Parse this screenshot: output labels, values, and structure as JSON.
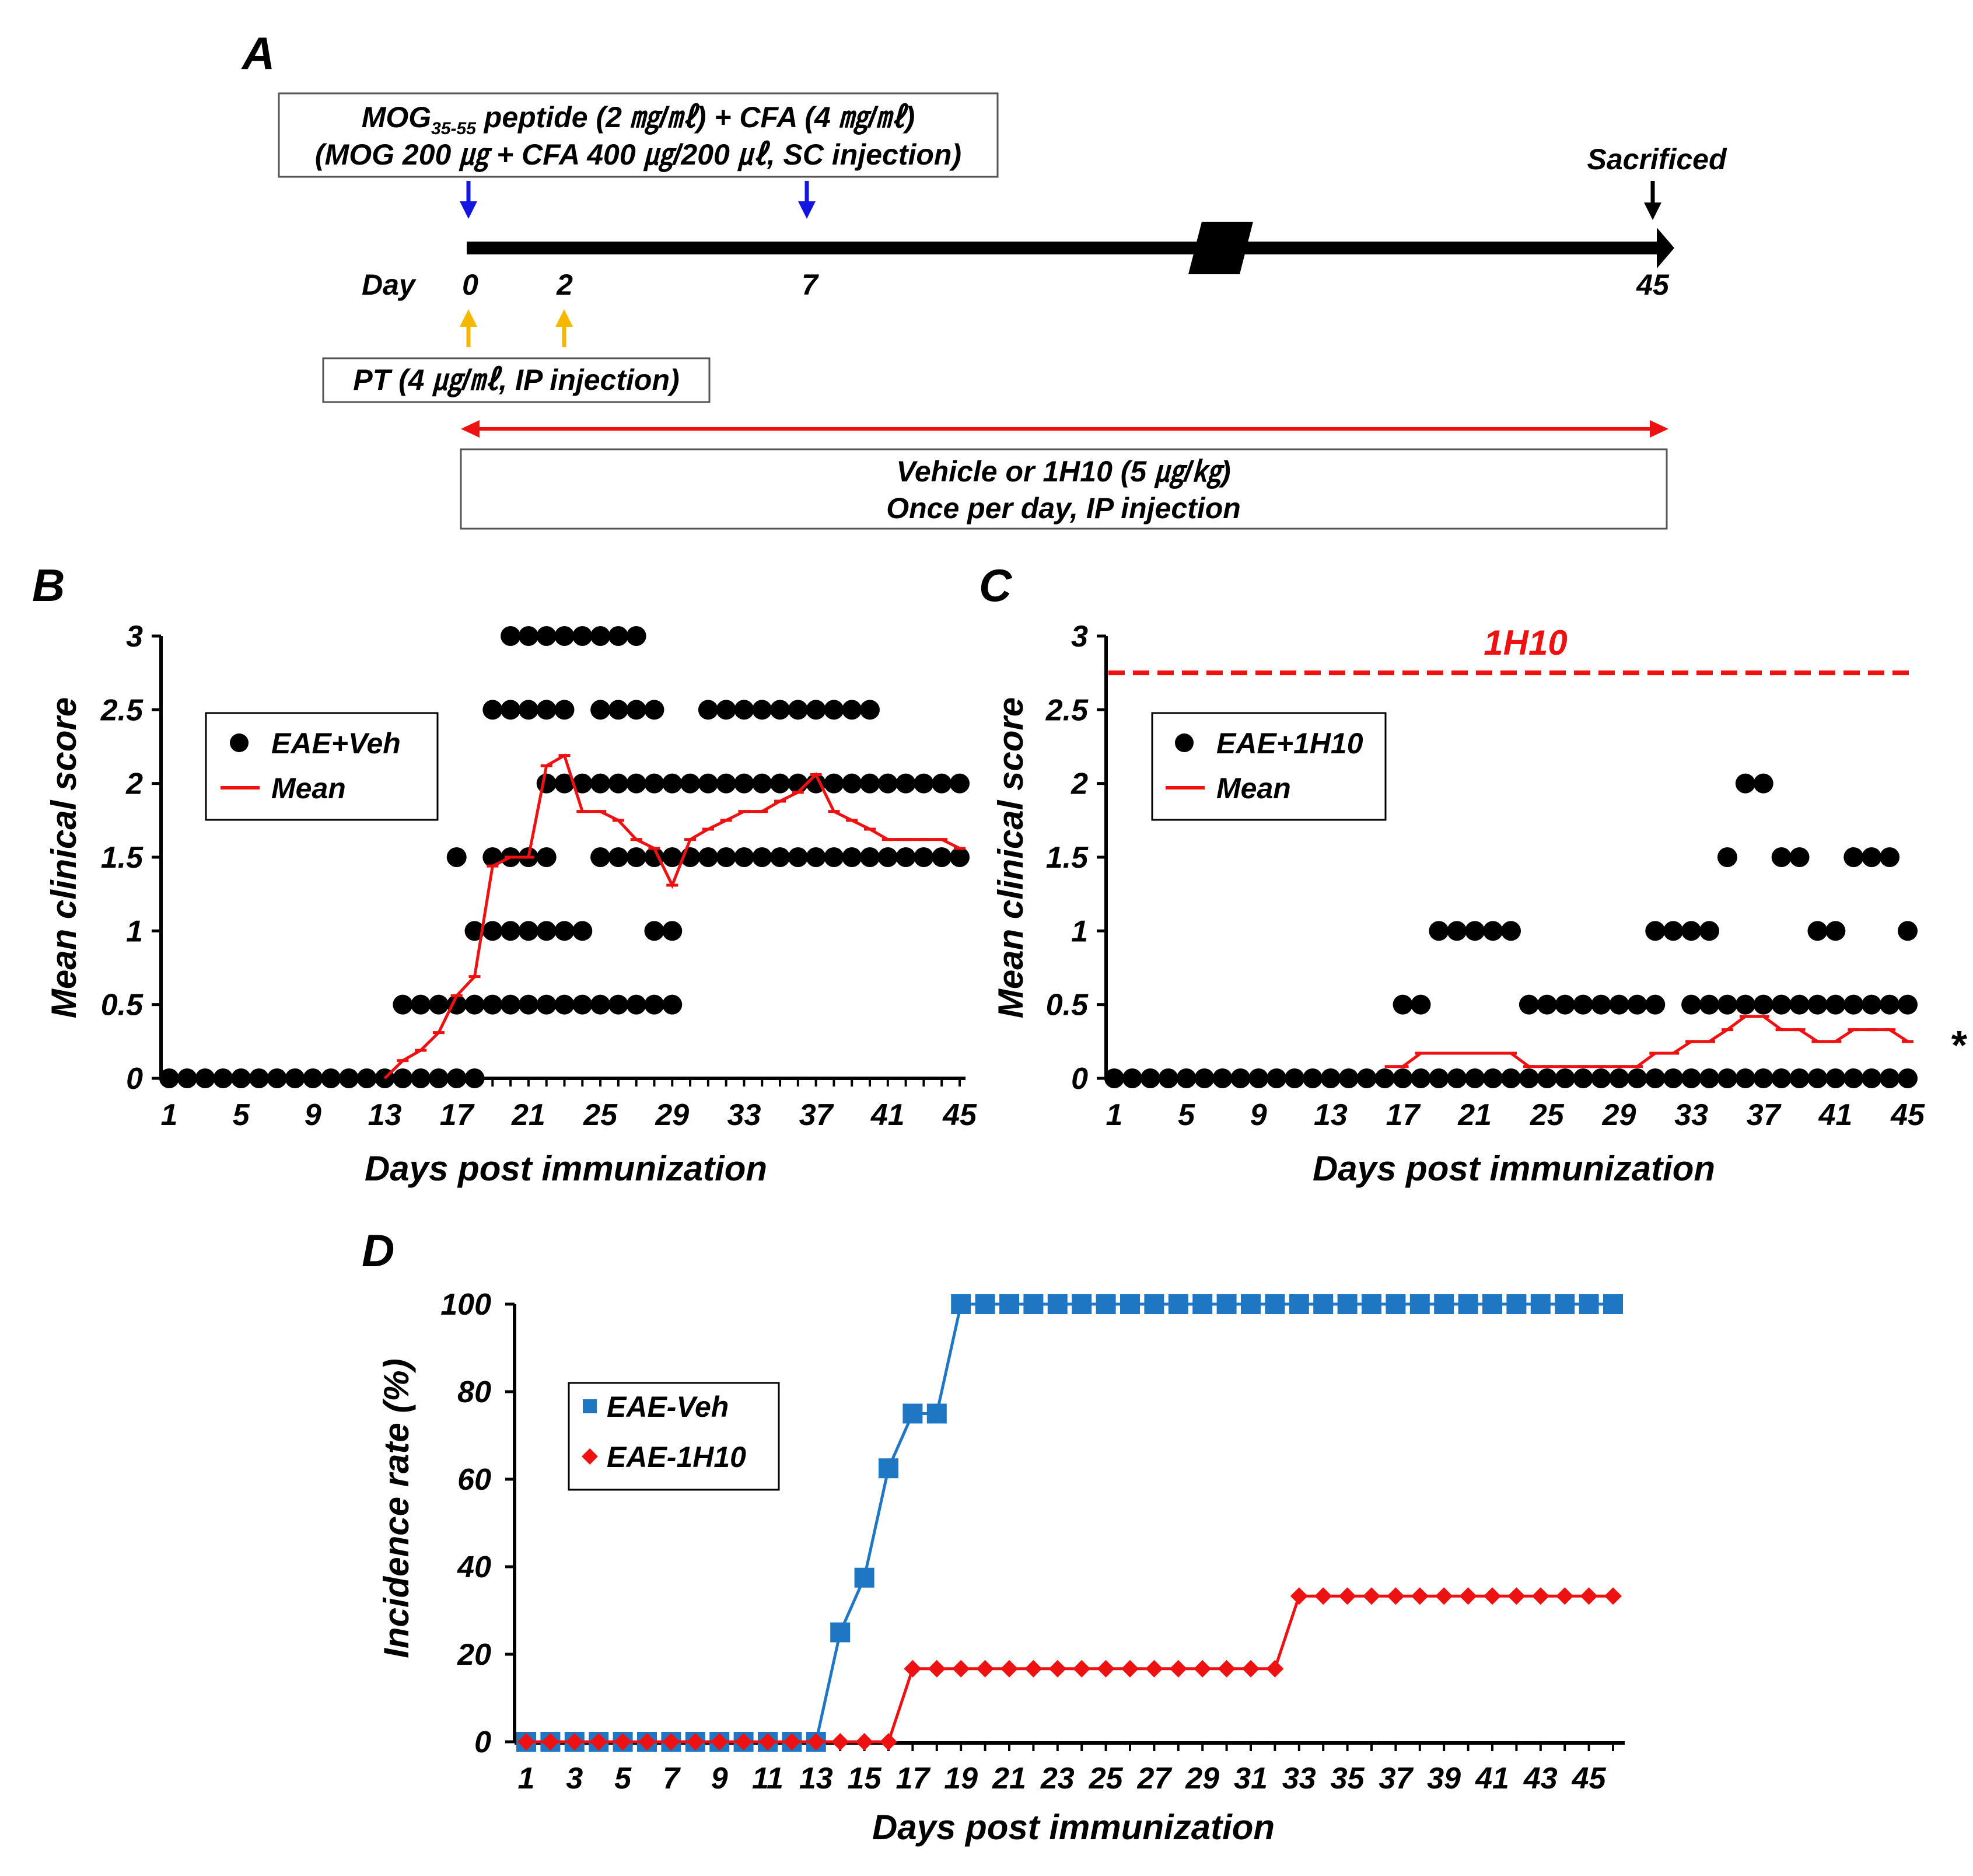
{
  "panel_a": {
    "letter": "A",
    "mog_box": {
      "line1_prefix": "MOG",
      "line1_sub": "35-55",
      "line1_rest": " peptide (2 ㎎/㎖) + CFA (4 ㎎/㎖)",
      "line2": "(MOG 200 ㎍ + CFA 400 ㎍/200 ㎕, SC injection)"
    },
    "sacrificed": "Sacrificed",
    "day_label": "Day",
    "day_0": "0",
    "day_2": "2",
    "day_7": "7",
    "day_45": "45",
    "pt_box": "PT (4 ㎍/㎖, IP injection)",
    "treatment_line1": "Vehicle or 1H10 (5 ㎍/㎏)",
    "treatment_line2": "Once per day, IP injection",
    "colors": {
      "mog_arrow": "#1515e0",
      "pt_arrow": "#f5b800",
      "treatment": "#ee1111",
      "timeline": "#000000"
    }
  },
  "chart_data": [
    {
      "panel": "B",
      "type": "scatter",
      "ylabel": "Mean clinical score",
      "xlabel": "Days post immunization",
      "ylim": [
        0,
        3
      ],
      "yticks": [
        "0",
        "0.5",
        "1",
        "1.5",
        "2",
        "2.5",
        "3"
      ],
      "xticks": [
        "1",
        "5",
        "9",
        "13",
        "17",
        "21",
        "25",
        "29",
        "33",
        "37",
        "41",
        "45"
      ],
      "xlim": [
        1,
        45
      ],
      "legend": {
        "dots": "EAE+Veh",
        "line": "Mean"
      },
      "dot_levels": [
        {
          "y": 0,
          "days": [
            1,
            2,
            3,
            4,
            5,
            6,
            7,
            8,
            9,
            10,
            11,
            12,
            13,
            14,
            15,
            16,
            17,
            18
          ]
        },
        {
          "y": 0.5,
          "days": [
            14,
            15,
            16,
            17,
            18,
            19,
            20,
            21,
            22,
            23,
            24,
            25,
            26,
            27,
            28,
            29
          ]
        },
        {
          "y": 1,
          "days": [
            18,
            19,
            20,
            21,
            22,
            23,
            24,
            28,
            29
          ]
        },
        {
          "y": 1.5,
          "days": [
            17,
            19,
            20,
            21,
            22,
            25,
            26,
            27,
            28,
            29,
            30,
            31,
            32,
            33,
            34,
            35,
            36,
            37,
            38,
            39,
            40,
            41,
            42,
            43,
            44,
            45
          ]
        },
        {
          "y": 2,
          "days": [
            22,
            23,
            24,
            25,
            26,
            27,
            28,
            29,
            30,
            31,
            32,
            33,
            34,
            35,
            36,
            37,
            38,
            39,
            40,
            41,
            42,
            43,
            44,
            45
          ]
        },
        {
          "y": 2.5,
          "days": [
            19,
            20,
            21,
            22,
            23,
            25,
            26,
            27,
            28,
            31,
            32,
            33,
            34,
            35,
            36,
            37,
            38,
            39,
            40
          ]
        },
        {
          "y": 3,
          "days": [
            20,
            21,
            22,
            23,
            24,
            25,
            26,
            27
          ]
        }
      ],
      "mean": {
        "days": [
          13,
          14,
          15,
          16,
          17,
          18,
          19,
          20,
          21,
          22,
          23,
          24,
          25,
          26,
          27,
          28,
          29,
          30,
          31,
          32,
          33,
          34,
          35,
          36,
          37,
          38,
          39,
          40,
          41,
          42,
          43,
          44,
          45
        ],
        "values": [
          0,
          0.12,
          0.19,
          0.31,
          0.56,
          0.69,
          1.44,
          1.5,
          1.5,
          2.12,
          2.19,
          1.81,
          1.81,
          1.75,
          1.62,
          1.56,
          1.31,
          1.62,
          1.69,
          1.75,
          1.81,
          1.81,
          1.88,
          1.94,
          2.06,
          1.81,
          1.75,
          1.69,
          1.62,
          1.62,
          1.62,
          1.62,
          1.56
        ]
      }
    },
    {
      "panel": "C",
      "type": "scatter",
      "ylabel": "Mean clinical score",
      "xlabel": "Days post immunization",
      "ylim": [
        0,
        3
      ],
      "yticks": [
        "0",
        "0.5",
        "1",
        "1.5",
        "2",
        "2.5",
        "3"
      ],
      "xticks": [
        "1",
        "5",
        "9",
        "13",
        "17",
        "21",
        "25",
        "29",
        "33",
        "37",
        "41",
        "45"
      ],
      "xlim": [
        1,
        45
      ],
      "legend": {
        "dots": "EAE+1H10",
        "line": "Mean"
      },
      "treatment_label": "1H10",
      "treatment_y": 2.75,
      "significance": "*",
      "dot_levels": [
        {
          "y": 0,
          "days": [
            1,
            2,
            3,
            4,
            5,
            6,
            7,
            8,
            9,
            10,
            11,
            12,
            13,
            14,
            15,
            16,
            17,
            18,
            19,
            20,
            21,
            22,
            23,
            24,
            25,
            26,
            27,
            28,
            29,
            30,
            31,
            32,
            33,
            34,
            35,
            36,
            37,
            38,
            39,
            40,
            41,
            42,
            43,
            44,
            45
          ]
        },
        {
          "y": 0.5,
          "days": [
            17,
            18,
            24,
            25,
            26,
            27,
            28,
            29,
            30,
            31,
            33,
            34,
            35,
            36,
            37,
            38,
            39,
            40,
            41,
            42,
            43,
            44,
            45
          ]
        },
        {
          "y": 1,
          "days": [
            19,
            20,
            21,
            22,
            23,
            31,
            32,
            33,
            34,
            40,
            41,
            45
          ]
        },
        {
          "y": 1.5,
          "days": [
            35,
            38,
            39,
            42,
            43,
            44
          ]
        },
        {
          "y": 2,
          "days": [
            36,
            37
          ]
        }
      ],
      "mean": {
        "days": [
          16,
          17,
          18,
          19,
          20,
          21,
          22,
          23,
          24,
          25,
          26,
          27,
          28,
          29,
          30,
          31,
          32,
          33,
          34,
          35,
          36,
          37,
          38,
          39,
          40,
          41,
          42,
          43,
          44,
          45
        ],
        "values": [
          0.08,
          0.08,
          0.17,
          0.17,
          0.17,
          0.17,
          0.17,
          0.17,
          0.08,
          0.08,
          0.08,
          0.08,
          0.08,
          0.08,
          0.08,
          0.17,
          0.17,
          0.25,
          0.25,
          0.33,
          0.42,
          0.42,
          0.33,
          0.33,
          0.25,
          0.25,
          0.33,
          0.33,
          0.33,
          0.25
        ]
      }
    },
    {
      "panel": "D",
      "type": "line",
      "ylabel": "Incidence rate (%)",
      "xlabel": "Days post immunization",
      "ylim": [
        0,
        100
      ],
      "yticks": [
        "0",
        "20",
        "40",
        "60",
        "80",
        "100"
      ],
      "xticks": [
        "1",
        "3",
        "5",
        "7",
        "9",
        "11",
        "13",
        "15",
        "17",
        "19",
        "21",
        "23",
        "25",
        "27",
        "29",
        "31",
        "33",
        "35",
        "37",
        "39",
        "41",
        "43",
        "45"
      ],
      "x": [
        1,
        2,
        3,
        4,
        5,
        6,
        7,
        8,
        9,
        10,
        11,
        12,
        13,
        14,
        15,
        16,
        17,
        18,
        19,
        20,
        21,
        22,
        23,
        24,
        25,
        26,
        27,
        28,
        29,
        30,
        31,
        32,
        33,
        34,
        35,
        36,
        37,
        38,
        39,
        40,
        41,
        42,
        43,
        44,
        45,
        46
      ],
      "series": [
        {
          "name": "EAE-Veh",
          "marker": "square",
          "color": "#1f77c4",
          "values": [
            0,
            0,
            0,
            0,
            0,
            0,
            0,
            0,
            0,
            0,
            0,
            0,
            0,
            25,
            37.5,
            62.5,
            75,
            75,
            100,
            100,
            100,
            100,
            100,
            100,
            100,
            100,
            100,
            100,
            100,
            100,
            100,
            100,
            100,
            100,
            100,
            100,
            100,
            100,
            100,
            100,
            100,
            100,
            100,
            100,
            100,
            100
          ]
        },
        {
          "name": "EAE-1H10",
          "marker": "diamond",
          "color": "#ee1111",
          "values": [
            0,
            0,
            0,
            0,
            0,
            0,
            0,
            0,
            0,
            0,
            0,
            0,
            0,
            0,
            0,
            0,
            16.7,
            16.7,
            16.7,
            16.7,
            16.7,
            16.7,
            16.7,
            16.7,
            16.7,
            16.7,
            16.7,
            16.7,
            16.7,
            16.7,
            16.7,
            16.7,
            33.3,
            33.3,
            33.3,
            33.3,
            33.3,
            33.3,
            33.3,
            33.3,
            33.3,
            33.3,
            33.3,
            33.3,
            33.3,
            33.3
          ]
        }
      ]
    }
  ]
}
